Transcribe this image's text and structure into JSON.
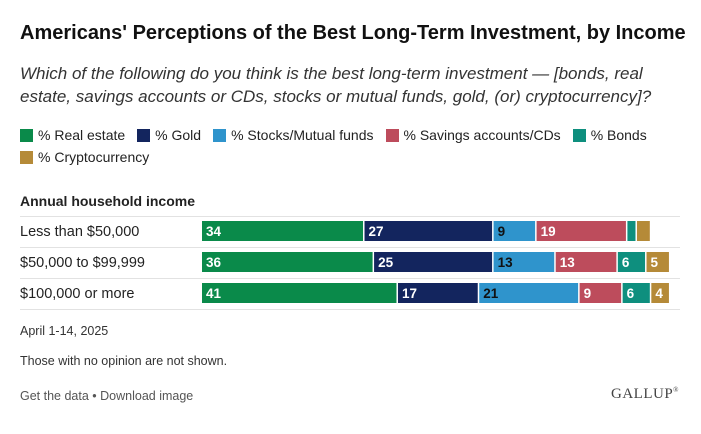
{
  "header": {
    "title": "Americans' Perceptions of the Best Long-Term Investment, by Income",
    "subtitle": "Which of the following do you think is the best long-term investment — [bonds, real estate, savings accounts or CDs, stocks or mutual funds, gold, (or) cryptocurrency]?"
  },
  "legend": [
    {
      "label": "% Real estate",
      "color": "#0a8a4a"
    },
    {
      "label": "% Gold",
      "color": "#13255e"
    },
    {
      "label": "% Stocks/Mutual funds",
      "color": "#2f94cc"
    },
    {
      "label": "% Savings accounts/CDs",
      "color": "#bd4c5c"
    },
    {
      "label": "% Bonds",
      "color": "#0e8f7e"
    },
    {
      "label": "% Cryptocurrency",
      "color": "#b58a38"
    }
  ],
  "chart_data": {
    "type": "bar",
    "orientation": "horizontal",
    "stacked": true,
    "row_header": "Annual household income",
    "categories": [
      "Less than $50,000",
      "$50,000 to $99,999",
      "$100,000 or more"
    ],
    "series": [
      {
        "name": "% Real estate",
        "color": "#0a8a4a",
        "values": [
          34,
          36,
          41
        ]
      },
      {
        "name": "% Gold",
        "color": "#13255e",
        "values": [
          27,
          25,
          17
        ]
      },
      {
        "name": "% Stocks/Mutual funds",
        "color": "#2f94cc",
        "values": [
          9,
          13,
          21
        ]
      },
      {
        "name": "% Savings accounts/CDs",
        "color": "#bd4c5c",
        "values": [
          19,
          13,
          9
        ]
      },
      {
        "name": "% Bonds",
        "color": "#0e8f7e",
        "values": [
          2,
          6,
          6
        ]
      },
      {
        "name": "% Cryptocurrency",
        "color": "#b58a38",
        "values": [
          3,
          5,
          4
        ]
      }
    ],
    "value_labels": [
      [
        "34",
        "27",
        "9",
        "19",
        "",
        ""
      ],
      [
        "36",
        "25",
        "13",
        "13",
        "6",
        "5"
      ],
      [
        "41",
        "17",
        "21",
        "9",
        "6",
        "4"
      ]
    ],
    "xlim": [
      0,
      100
    ]
  },
  "notes": {
    "date": "April 1-14, 2025",
    "footnote": "Those with no opinion are not shown."
  },
  "footer": {
    "get_data": "Get the data",
    "separator": " • ",
    "download": "Download image",
    "logo": "GALLUP"
  }
}
